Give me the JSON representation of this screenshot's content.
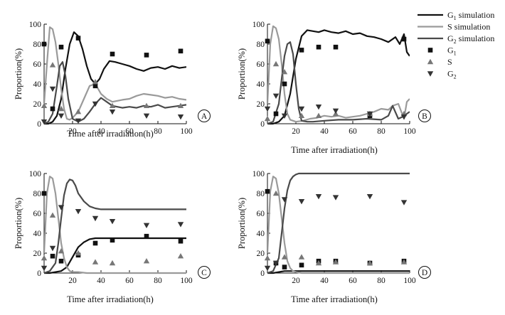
{
  "colors": {
    "g1": "#111111",
    "s": "#9a9a9a",
    "g2": "#4a4a4a",
    "axis": "#111111"
  },
  "legend": {
    "items": [
      {
        "key": "g1_sim",
        "label": "G",
        "sub": "1",
        "suffix": " simulation",
        "kind": "line",
        "color": "#111111"
      },
      {
        "key": "s_sim",
        "label": "S simulation",
        "sub": "",
        "suffix": "",
        "kind": "line",
        "color": "#9a9a9a"
      },
      {
        "key": "g2_sim",
        "label": "G",
        "sub": "2",
        "suffix": " simulation",
        "kind": "line",
        "color": "#4a4a4a"
      },
      {
        "key": "g1_obs",
        "label": "G",
        "sub": "1",
        "suffix": "",
        "kind": "square",
        "color": "#111111"
      },
      {
        "key": "s_obs",
        "label": "S",
        "sub": "",
        "suffix": "",
        "kind": "triangle-up",
        "color": "#777777"
      },
      {
        "key": "g2_obs",
        "label": "G",
        "sub": "2",
        "suffix": "",
        "kind": "triangle-down",
        "color": "#333333"
      }
    ]
  },
  "chart_data": [
    {
      "panel": "A",
      "type": "line",
      "xlabel": "Time after irradiation(h)",
      "ylabel": "Proportion(%)",
      "xlim": [
        0,
        100
      ],
      "ylim": [
        0,
        100
      ],
      "xticks": [
        20,
        40,
        60,
        80,
        100
      ],
      "yticks": [
        0,
        20,
        40,
        60,
        80,
        100
      ],
      "series": [
        {
          "name": "G1 simulation",
          "kind": "line",
          "color": "#111111",
          "x": [
            0,
            3,
            6,
            9,
            12,
            15,
            18,
            21,
            24,
            27,
            30,
            33,
            36,
            39,
            42,
            46,
            50,
            55,
            60,
            65,
            70,
            75,
            80,
            85,
            90,
            95,
            100
          ],
          "y": [
            0,
            0,
            2,
            8,
            25,
            55,
            80,
            92,
            88,
            75,
            58,
            45,
            40,
            45,
            55,
            63,
            62,
            60,
            58,
            55,
            53,
            56,
            57,
            55,
            58,
            56,
            57
          ]
        },
        {
          "name": "S simulation",
          "kind": "line",
          "color": "#9a9a9a",
          "x": [
            0,
            2,
            4,
            6,
            8,
            10,
            12,
            14,
            16,
            18,
            20,
            24,
            28,
            32,
            36,
            40,
            44,
            48,
            55,
            60,
            65,
            70,
            75,
            80,
            85,
            90,
            95,
            100
          ],
          "y": [
            20,
            60,
            97,
            95,
            82,
            60,
            35,
            15,
            5,
            4,
            6,
            12,
            25,
            38,
            40,
            30,
            25,
            22,
            24,
            25,
            28,
            30,
            29,
            28,
            26,
            27,
            25,
            24
          ]
        },
        {
          "name": "G2 simulation",
          "kind": "line",
          "color": "#4a4a4a",
          "x": [
            0,
            3,
            6,
            9,
            11,
            13,
            15,
            17,
            20,
            24,
            28,
            32,
            36,
            40,
            44,
            48,
            55,
            60,
            65,
            70,
            75,
            80,
            85,
            90,
            95,
            100
          ],
          "y": [
            0,
            2,
            10,
            38,
            58,
            62,
            48,
            25,
            5,
            2,
            5,
            12,
            20,
            26,
            22,
            18,
            16,
            17,
            16,
            18,
            17,
            19,
            16,
            17,
            18,
            19
          ]
        },
        {
          "name": "G1",
          "kind": "square",
          "color": "#111111",
          "x": [
            0,
            6,
            12,
            24,
            36,
            48,
            72,
            96
          ],
          "y": [
            80,
            15,
            77,
            86,
            38,
            70,
            69,
            73
          ]
        },
        {
          "name": "S",
          "kind": "triangle-up",
          "color": "#777777",
          "x": [
            0,
            6,
            12,
            24,
            36,
            48,
            72,
            96
          ],
          "y": [
            18,
            59,
            15,
            12,
            42,
            18,
            18,
            18
          ]
        },
        {
          "name": "G2",
          "kind": "triangle-down",
          "color": "#333333",
          "x": [
            0,
            6,
            12,
            24,
            36,
            48,
            72,
            96
          ],
          "y": [
            2,
            35,
            8,
            3,
            20,
            12,
            8,
            7
          ]
        }
      ]
    },
    {
      "panel": "B",
      "type": "line",
      "xlabel": "Time after irradiation(h)",
      "ylabel": "Proportion(%)",
      "xlim": [
        0,
        100
      ],
      "ylim": [
        0,
        100
      ],
      "xticks": [
        20,
        40,
        60,
        80,
        100
      ],
      "yticks": [
        0,
        20,
        40,
        60,
        80,
        100
      ],
      "series": [
        {
          "name": "G1 simulation",
          "kind": "line",
          "color": "#111111",
          "x": [
            0,
            4,
            8,
            12,
            16,
            20,
            24,
            28,
            32,
            36,
            40,
            45,
            50,
            55,
            60,
            65,
            70,
            75,
            80,
            85,
            90,
            93,
            96,
            98,
            100
          ],
          "y": [
            0,
            0,
            2,
            8,
            30,
            65,
            88,
            94,
            93,
            92,
            94,
            92,
            91,
            93,
            90,
            91,
            88,
            87,
            85,
            82,
            87,
            80,
            90,
            72,
            68
          ]
        },
        {
          "name": "S simulation",
          "kind": "line",
          "color": "#9a9a9a",
          "x": [
            0,
            2,
            4,
            6,
            8,
            10,
            12,
            14,
            16,
            20,
            25,
            30,
            35,
            40,
            45,
            50,
            55,
            60,
            65,
            70,
            75,
            80,
            85,
            88,
            92,
            96,
            98,
            100
          ],
          "y": [
            20,
            80,
            98,
            96,
            85,
            60,
            30,
            10,
            4,
            2,
            3,
            5,
            6,
            8,
            7,
            8,
            6,
            7,
            8,
            10,
            12,
            15,
            14,
            18,
            20,
            5,
            22,
            25
          ]
        },
        {
          "name": "G2 simulation",
          "kind": "line",
          "color": "#4a4a4a",
          "x": [
            0,
            4,
            8,
            10,
            12,
            14,
            16,
            18,
            20,
            22,
            24,
            28,
            32,
            40,
            50,
            60,
            70,
            80,
            85,
            88,
            92,
            95,
            98,
            100
          ],
          "y": [
            0,
            2,
            20,
            45,
            68,
            80,
            82,
            70,
            40,
            15,
            3,
            2,
            2,
            3,
            4,
            4,
            5,
            4,
            8,
            18,
            5,
            7,
            10,
            12
          ]
        },
        {
          "name": "G1",
          "kind": "square",
          "color": "#111111",
          "x": [
            0,
            6,
            12,
            24,
            36,
            48,
            72,
            96
          ],
          "y": [
            83,
            10,
            40,
            74,
            77,
            77,
            8,
            85
          ]
        },
        {
          "name": "S",
          "kind": "triangle-up",
          "color": "#777777",
          "x": [
            0,
            6,
            12,
            24,
            36,
            48,
            72,
            96
          ],
          "y": [
            5,
            60,
            52,
            8,
            8,
            10,
            10,
            10
          ]
        },
        {
          "name": "G2",
          "kind": "triangle-down",
          "color": "#333333",
          "x": [
            0,
            6,
            12,
            24,
            36,
            48,
            72,
            96
          ],
          "y": [
            15,
            28,
            8,
            15,
            17,
            13,
            10,
            7
          ]
        }
      ]
    },
    {
      "panel": "C",
      "type": "line",
      "xlabel": "Time after irradiation(h)",
      "ylabel": "Proportion(%)",
      "xlim": [
        0,
        100
      ],
      "ylim": [
        0,
        100
      ],
      "xticks": [
        20,
        40,
        60,
        80,
        100
      ],
      "yticks": [
        0,
        20,
        40,
        60,
        80,
        100
      ],
      "series": [
        {
          "name": "G1 simulation",
          "kind": "line",
          "color": "#111111",
          "x": [
            0,
            4,
            8,
            12,
            16,
            20,
            24,
            28,
            32,
            36,
            40,
            50,
            60,
            70,
            80,
            90,
            100
          ],
          "y": [
            0,
            0,
            1,
            2,
            6,
            16,
            26,
            31,
            34,
            35,
            35,
            35,
            35,
            35,
            35,
            35,
            35
          ]
        },
        {
          "name": "S simulation",
          "kind": "line",
          "color": "#9a9a9a",
          "x": [
            0,
            2,
            4,
            6,
            8,
            10,
            12,
            14,
            16,
            18,
            20,
            24,
            30,
            40,
            60,
            80,
            100
          ],
          "y": [
            20,
            80,
            97,
            95,
            80,
            55,
            30,
            15,
            6,
            2,
            1,
            1,
            0,
            0,
            0,
            0,
            0
          ]
        },
        {
          "name": "G2 simulation",
          "kind": "line",
          "color": "#4a4a4a",
          "x": [
            0,
            4,
            8,
            10,
            12,
            14,
            16,
            18,
            20,
            22,
            24,
            28,
            32,
            36,
            40,
            50,
            60,
            70,
            80,
            90,
            100
          ],
          "y": [
            0,
            2,
            10,
            30,
            55,
            78,
            90,
            94,
            93,
            88,
            80,
            72,
            67,
            65,
            64,
            64,
            64,
            64,
            64,
            64,
            64
          ]
        },
        {
          "name": "G1",
          "kind": "square",
          "color": "#111111",
          "x": [
            0,
            6,
            12,
            24,
            36,
            48,
            72,
            96
          ],
          "y": [
            80,
            17,
            12,
            18,
            30,
            33,
            37,
            32
          ]
        },
        {
          "name": "S",
          "kind": "triangle-up",
          "color": "#777777",
          "x": [
            0,
            6,
            12,
            24,
            36,
            48,
            72,
            96
          ],
          "y": [
            15,
            58,
            22,
            20,
            11,
            10,
            12,
            17
          ]
        },
        {
          "name": "G2",
          "kind": "triangle-down",
          "color": "#333333",
          "x": [
            0,
            6,
            12,
            24,
            36,
            48,
            72,
            96
          ],
          "y": [
            5,
            25,
            66,
            62,
            55,
            52,
            48,
            49
          ]
        }
      ]
    },
    {
      "panel": "D",
      "type": "line",
      "xlabel": "Time after irradiation(h)",
      "ylabel": "Proportion(%)",
      "xlim": [
        0,
        100
      ],
      "ylim": [
        0,
        100
      ],
      "xticks": [
        20,
        40,
        60,
        80,
        100
      ],
      "yticks": [
        0,
        20,
        40,
        60,
        80,
        100
      ],
      "series": [
        {
          "name": "G1 simulation",
          "kind": "line",
          "color": "#111111",
          "x": [
            0,
            4,
            8,
            12,
            16,
            20,
            30,
            40,
            60,
            80,
            100
          ],
          "y": [
            0,
            0,
            1,
            2,
            2,
            2,
            2,
            2,
            2,
            2,
            2
          ]
        },
        {
          "name": "S simulation",
          "kind": "line",
          "color": "#9a9a9a",
          "x": [
            0,
            2,
            4,
            6,
            8,
            10,
            12,
            14,
            16,
            18,
            20,
            24,
            30,
            40,
            60,
            80,
            100
          ],
          "y": [
            20,
            82,
            97,
            95,
            80,
            55,
            30,
            12,
            5,
            2,
            1,
            0,
            0,
            0,
            0,
            0,
            0
          ]
        },
        {
          "name": "G2 simulation",
          "kind": "line",
          "color": "#4a4a4a",
          "x": [
            0,
            4,
            8,
            10,
            12,
            14,
            16,
            18,
            20,
            22,
            24,
            28,
            32,
            40,
            60,
            80,
            100
          ],
          "y": [
            0,
            2,
            15,
            40,
            65,
            83,
            93,
            97,
            99,
            100,
            100,
            100,
            100,
            100,
            100,
            100,
            100
          ]
        },
        {
          "name": "G1",
          "kind": "square",
          "color": "#111111",
          "x": [
            0,
            6,
            12,
            24,
            36,
            48,
            72,
            96
          ],
          "y": [
            82,
            10,
            6,
            8,
            12,
            12,
            10,
            12
          ]
        },
        {
          "name": "S",
          "kind": "triangle-up",
          "color": "#777777",
          "x": [
            0,
            6,
            12,
            24,
            36,
            48,
            72,
            96
          ],
          "y": [
            15,
            80,
            16,
            16,
            10,
            11,
            10,
            11
          ]
        },
        {
          "name": "G2",
          "kind": "triangle-down",
          "color": "#333333",
          "x": [
            0,
            6,
            12,
            24,
            36,
            48,
            72,
            96
          ],
          "y": [
            5,
            10,
            74,
            72,
            77,
            76,
            77,
            71
          ]
        }
      ]
    }
  ]
}
